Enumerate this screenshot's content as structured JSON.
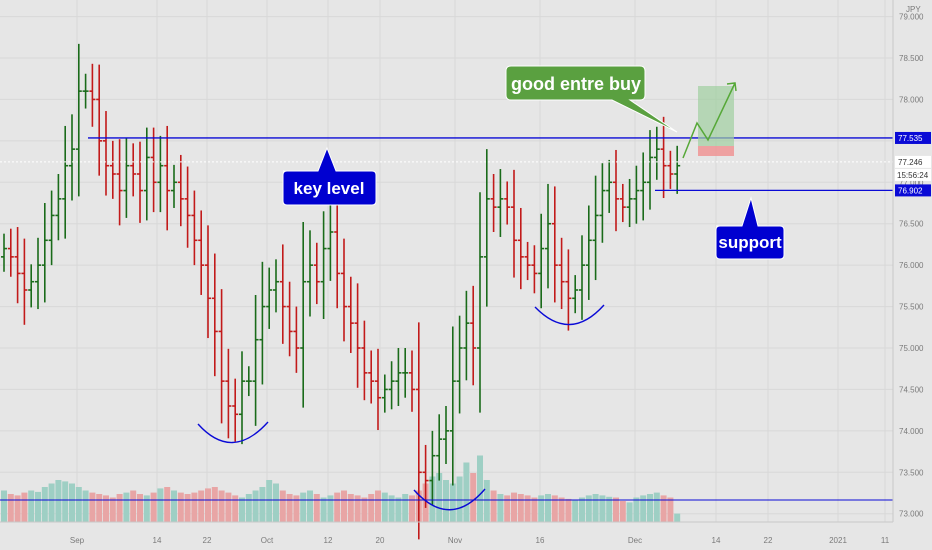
{
  "chart_data": {
    "type": "bar",
    "instrument": "OHLC price bars with volume",
    "currency_label": "JPY",
    "y_range": [
      72.9,
      79.2
    ],
    "y_ticks": [
      "79.000",
      "78.500",
      "78.000",
      "77.500",
      "77.000",
      "76.500",
      "76.000",
      "75.500",
      "75.000",
      "74.500",
      "74.000",
      "73.500",
      "73.000"
    ],
    "x_ticks": [
      "Sep",
      "14",
      "22",
      "Oct",
      "12",
      "20",
      "Nov",
      "16",
      "Dec",
      "14",
      "22",
      "2021",
      "11"
    ],
    "closes": [
      76.2,
      76.1,
      75.9,
      75.7,
      75.8,
      76.0,
      76.3,
      76.6,
      76.8,
      77.2,
      77.4,
      78.1,
      78.1,
      78.0,
      77.5,
      77.2,
      77.1,
      76.9,
      77.2,
      77.1,
      76.9,
      77.3,
      77.0,
      77.2,
      76.9,
      77.0,
      76.8,
      76.6,
      76.3,
      76.0,
      75.6,
      75.2,
      74.6,
      74.3,
      74.2,
      74.6,
      74.6,
      75.1,
      75.5,
      75.7,
      75.8,
      75.5,
      75.2,
      75.0,
      75.8,
      76.0,
      75.8,
      76.2,
      76.4,
      75.9,
      75.5,
      75.3,
      75.0,
      74.7,
      74.6,
      74.4,
      74.5,
      74.6,
      74.7,
      74.7,
      74.5,
      73.5,
      73.4,
      73.7,
      73.9,
      74.0,
      74.6,
      75.0,
      75.3,
      75.0,
      76.1,
      76.8,
      76.7,
      76.8,
      76.7,
      76.3,
      76.1,
      76.0,
      75.9,
      76.2,
      76.5,
      76.0,
      75.8,
      75.6,
      75.7,
      76.0,
      76.3,
      76.6,
      76.9,
      77.0,
      76.8,
      76.7,
      76.8,
      76.9,
      77.0,
      77.3,
      77.4,
      77.2,
      77.1,
      77.2
    ],
    "volumes": [
      0.45,
      0.4,
      0.38,
      0.42,
      0.45,
      0.43,
      0.5,
      0.55,
      0.6,
      0.58,
      0.55,
      0.5,
      0.45,
      0.42,
      0.4,
      0.38,
      0.35,
      0.4,
      0.42,
      0.45,
      0.4,
      0.38,
      0.42,
      0.48,
      0.5,
      0.45,
      0.42,
      0.4,
      0.42,
      0.45,
      0.48,
      0.5,
      0.45,
      0.42,
      0.38,
      0.35,
      0.4,
      0.45,
      0.5,
      0.6,
      0.55,
      0.45,
      0.4,
      0.38,
      0.42,
      0.45,
      0.4,
      0.35,
      0.38,
      0.42,
      0.45,
      0.4,
      0.38,
      0.35,
      0.4,
      0.45,
      0.42,
      0.38,
      0.35,
      0.4,
      0.38,
      0.45,
      0.55,
      0.65,
      0.7,
      0.6,
      0.55,
      0.65,
      0.85,
      0.7,
      0.95,
      0.6,
      0.45,
      0.4,
      0.38,
      0.42,
      0.4,
      0.38,
      0.35,
      0.38,
      0.4,
      0.38,
      0.35,
      0.33,
      0.32,
      0.35,
      0.38,
      0.4,
      0.38,
      0.36,
      0.35,
      0.3,
      0.28,
      0.35,
      0.38,
      0.4,
      0.42,
      0.38,
      0.35,
      0.12
    ],
    "lines": [
      {
        "name": "key level",
        "value": 77.535
      },
      {
        "name": "support",
        "value": 76.902
      }
    ],
    "price_tags": {
      "key_level": "77.535",
      "current": "77.246",
      "countdown": "15:56:24",
      "support": "76.902"
    },
    "annotations": {
      "buy": "good entre buy",
      "key": "key level",
      "support": "support"
    },
    "colors": {
      "up": "#1a6b1a",
      "down": "#c21a1a",
      "vol_up": "#9ecfc4",
      "vol_down": "#e8a5a5",
      "level": "#0a0ad6",
      "callout_blue": "#0000d0",
      "callout_green": "#5aa040"
    }
  }
}
